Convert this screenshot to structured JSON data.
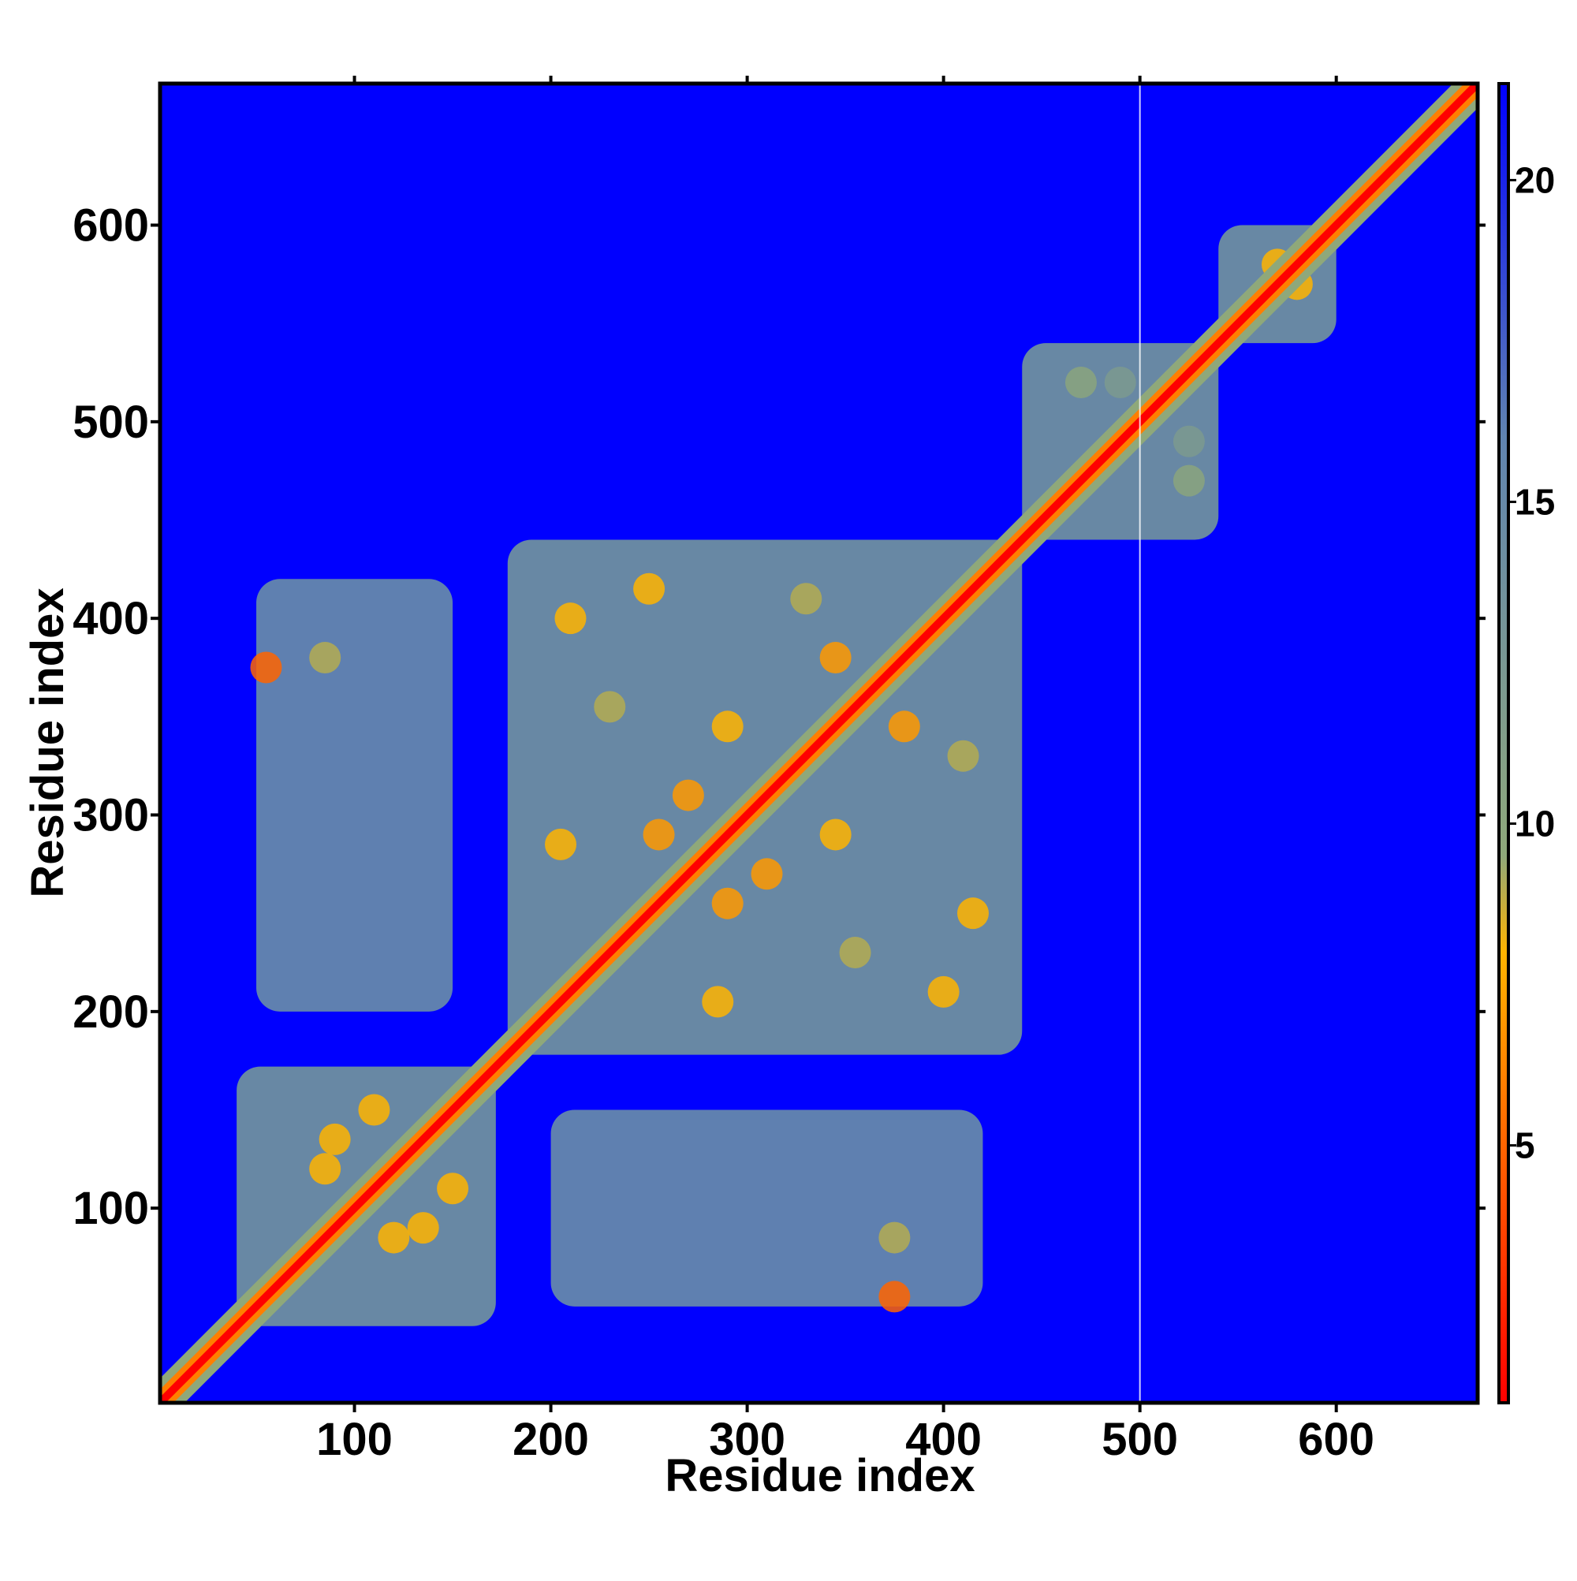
{
  "chart_data": {
    "type": "heatmap",
    "xlabel": "Residue index",
    "ylabel": "Residue index",
    "xlim": [
      1,
      672
    ],
    "ylim": [
      1,
      672
    ],
    "x_ticks": [
      100,
      200,
      300,
      400,
      500,
      600
    ],
    "y_ticks": [
      100,
      200,
      300,
      400,
      500,
      600
    ],
    "colorbar": {
      "range": [
        1,
        21.5
      ],
      "ticks": [
        5,
        10,
        15,
        20
      ],
      "stops": [
        {
          "value": 1,
          "color": "#ff0000"
        },
        {
          "value": 5,
          "color": "#ff6400"
        },
        {
          "value": 8,
          "color": "#ffb400"
        },
        {
          "value": 9.5,
          "color": "#8fa87a"
        },
        {
          "value": 16,
          "color": "#6084b0"
        },
        {
          "value": 21.5,
          "color": "#0000ff"
        }
      ]
    },
    "background_value": 21.5,
    "diagonal_value": 1,
    "highlight_column": 500,
    "contact_regions": [
      {
        "x": [
          40,
          172
        ],
        "y": [
          40,
          172
        ],
        "value": 14
      },
      {
        "x": [
          178,
          440
        ],
        "y": [
          178,
          440
        ],
        "value": 14
      },
      {
        "x": [
          50,
          150
        ],
        "y": [
          200,
          420
        ],
        "value": 15.5
      },
      {
        "x": [
          200,
          420
        ],
        "y": [
          50,
          150
        ],
        "value": 15.5
      },
      {
        "x": [
          440,
          540
        ],
        "y": [
          440,
          540
        ],
        "value": 14
      },
      {
        "x": [
          540,
          600
        ],
        "y": [
          540,
          600
        ],
        "value": 14
      }
    ],
    "hotspots": [
      {
        "x": 55,
        "y": 375,
        "value": 5
      },
      {
        "x": 85,
        "y": 380,
        "value": 9
      },
      {
        "x": 375,
        "y": 85,
        "value": 9
      },
      {
        "x": 375,
        "y": 55,
        "value": 5
      },
      {
        "x": 470,
        "y": 520,
        "value": 10
      },
      {
        "x": 490,
        "y": 520,
        "value": 12
      },
      {
        "x": 525,
        "y": 470,
        "value": 10
      },
      {
        "x": 525,
        "y": 490,
        "value": 12
      },
      {
        "x": 250,
        "y": 415,
        "value": 8
      },
      {
        "x": 415,
        "y": 250,
        "value": 8
      },
      {
        "x": 290,
        "y": 345,
        "value": 8
      },
      {
        "x": 345,
        "y": 290,
        "value": 8
      },
      {
        "x": 230,
        "y": 355,
        "value": 9
      },
      {
        "x": 355,
        "y": 230,
        "value": 9
      },
      {
        "x": 205,
        "y": 285,
        "value": 8
      },
      {
        "x": 285,
        "y": 205,
        "value": 8
      },
      {
        "x": 210,
        "y": 400,
        "value": 8
      },
      {
        "x": 400,
        "y": 210,
        "value": 8
      },
      {
        "x": 330,
        "y": 410,
        "value": 9
      },
      {
        "x": 410,
        "y": 330,
        "value": 9
      },
      {
        "x": 255,
        "y": 290,
        "value": 7
      },
      {
        "x": 290,
        "y": 255,
        "value": 7
      },
      {
        "x": 310,
        "y": 270,
        "value": 7
      },
      {
        "x": 270,
        "y": 310,
        "value": 7
      },
      {
        "x": 380,
        "y": 345,
        "value": 7
      },
      {
        "x": 345,
        "y": 380,
        "value": 7
      },
      {
        "x": 120,
        "y": 85,
        "value": 8
      },
      {
        "x": 85,
        "y": 120,
        "value": 8
      },
      {
        "x": 90,
        "y": 135,
        "value": 8
      },
      {
        "x": 135,
        "y": 90,
        "value": 8
      },
      {
        "x": 150,
        "y": 110,
        "value": 8
      },
      {
        "x": 110,
        "y": 150,
        "value": 8
      },
      {
        "x": 570,
        "y": 580,
        "value": 8
      },
      {
        "x": 580,
        "y": 570,
        "value": 8
      }
    ]
  }
}
